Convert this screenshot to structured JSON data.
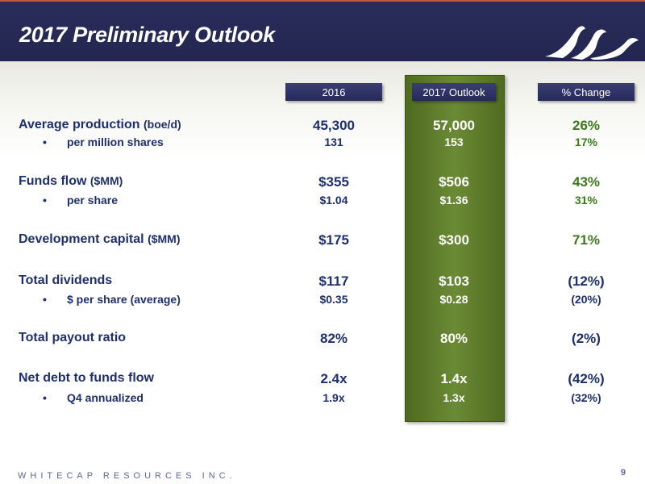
{
  "title": "2017 Preliminary Outlook",
  "columns": {
    "c2016": "2016",
    "c2017": "2017 Outlook",
    "change": "% Change"
  },
  "rows": [
    {
      "label": "Average production",
      "unit": "(boe/d)",
      "v2016": "45,300",
      "v2017": "57,000",
      "change": "26%"
    },
    {
      "label": "per million shares",
      "bullet": "•",
      "v2016": "131",
      "v2017": "153",
      "change": "17%"
    },
    {
      "label": "Funds flow",
      "unit": "($MM)",
      "v2016": "$355",
      "v2017": "$506",
      "change": "43%"
    },
    {
      "label": "per share",
      "bullet": "•",
      "v2016": "$1.04",
      "v2017": "$1.36",
      "change": "31%"
    },
    {
      "label": "Development capital",
      "unit": "($MM)",
      "v2016": "$175",
      "v2017": "$300",
      "change": "71%"
    },
    {
      "label": "Total dividends",
      "v2016": "$117",
      "v2017": "$103",
      "change": "(12%)"
    },
    {
      "label": "$ per share (average)",
      "bullet": "•",
      "v2016": "$0.35",
      "v2017": "$0.28",
      "change": "(20%)"
    },
    {
      "label": "Total payout ratio",
      "v2016": "82%",
      "v2017": "80%",
      "change": "(2%)"
    },
    {
      "label": "Net debt to funds flow",
      "v2016": "2.4x",
      "v2017": "1.4x",
      "change": "(42%)"
    },
    {
      "label": "Q4 annualized",
      "bullet": "•",
      "v2016": "1.9x",
      "v2017": "1.3x",
      "change": "(32%)"
    }
  ],
  "footer": {
    "company": "WHITECAP RESOURCES INC.",
    "page": "9"
  },
  "colors": {
    "navy": "#232650",
    "green_column": "#5c7a2a",
    "positive": "#3b7a1a",
    "text": "#1f2f6e",
    "accent": "#c05a3a"
  },
  "icons": {
    "logo": "whitecap-wave-logo"
  }
}
